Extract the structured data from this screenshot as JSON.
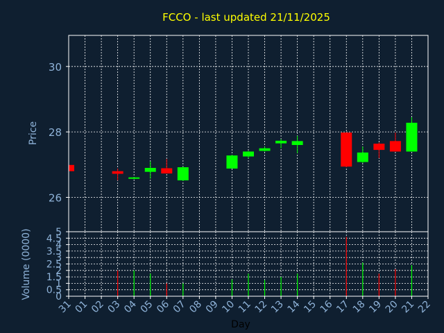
{
  "chart_data": [
    {
      "type": "candlestick",
      "title": "FCCO - last updated 21/11/2025",
      "ylabel": "Price",
      "ylim": [
        24.95,
        30.95
      ],
      "yticks": [
        26,
        28,
        30
      ],
      "ytick_labels": [
        "26",
        "28",
        "30"
      ],
      "grid": true,
      "colors": {
        "up": "#00ff00",
        "down": "#ff0000",
        "title": "#ffff00",
        "axis_text": "#8fb3d9",
        "grid": "#ffffff",
        "frame": "#ffffff",
        "background": "#0f1f30"
      },
      "x": [
        "31",
        "01",
        "02",
        "03",
        "04",
        "05",
        "06",
        "07",
        "08",
        "09",
        "10",
        "11",
        "12",
        "13",
        "14",
        "15",
        "16",
        "17",
        "18",
        "19",
        "20",
        "21",
        "22"
      ],
      "ohlc": [
        {
          "x": "31",
          "o": 26.99,
          "h": 27.0,
          "l": 26.78,
          "c": 26.8
        },
        {
          "x": "03",
          "o": 26.8,
          "h": 26.88,
          "l": 26.52,
          "c": 26.72
        },
        {
          "x": "04",
          "o": 26.57,
          "h": 26.62,
          "l": 26.55,
          "c": 26.61
        },
        {
          "x": "05",
          "o": 26.78,
          "h": 27.1,
          "l": 26.57,
          "c": 26.9
        },
        {
          "x": "06",
          "o": 26.89,
          "h": 27.17,
          "l": 26.73,
          "c": 26.73
        },
        {
          "x": "07",
          "o": 26.52,
          "h": 26.94,
          "l": 26.5,
          "c": 26.92
        },
        {
          "x": "10",
          "o": 26.88,
          "h": 27.3,
          "l": 26.88,
          "c": 27.28
        },
        {
          "x": "11",
          "o": 27.25,
          "h": 27.42,
          "l": 27.2,
          "c": 27.4
        },
        {
          "x": "12",
          "o": 27.42,
          "h": 27.55,
          "l": 27.4,
          "c": 27.5
        },
        {
          "x": "13",
          "o": 27.65,
          "h": 27.78,
          "l": 27.5,
          "c": 27.73
        },
        {
          "x": "14",
          "o": 27.6,
          "h": 27.88,
          "l": 27.35,
          "c": 27.72
        },
        {
          "x": "17",
          "o": 27.98,
          "h": 27.99,
          "l": 26.92,
          "c": 26.94
        },
        {
          "x": "18",
          "o": 27.08,
          "h": 27.55,
          "l": 27.05,
          "c": 27.37
        },
        {
          "x": "19",
          "o": 27.64,
          "h": 27.68,
          "l": 27.2,
          "c": 27.45
        },
        {
          "x": "20",
          "o": 27.72,
          "h": 27.98,
          "l": 27.4,
          "c": 27.4
        },
        {
          "x": "21",
          "o": 27.4,
          "h": 28.45,
          "l": 27.4,
          "c": 28.28
        }
      ]
    },
    {
      "type": "bar",
      "xlabel": "Day",
      "ylabel": "Volume (0000)",
      "ylim": [
        0,
        5
      ],
      "yticks": [
        0,
        0.5,
        1,
        1.5,
        2,
        2.5,
        3,
        3.5,
        4,
        4.5,
        5
      ],
      "ytick_labels": [
        "0",
        "0.5",
        "1",
        "1.5",
        "2",
        "2.5",
        "3",
        "3.5",
        "4",
        "4.5",
        "5"
      ],
      "categories": [
        "31",
        "01",
        "02",
        "03",
        "04",
        "05",
        "06",
        "07",
        "08",
        "09",
        "10",
        "11",
        "12",
        "13",
        "14",
        "15",
        "16",
        "17",
        "18",
        "19",
        "20",
        "21",
        "22"
      ],
      "values": [
        {
          "x": "03",
          "v": 2.0,
          "dir": "down"
        },
        {
          "x": "04",
          "v": 2.0,
          "dir": "up"
        },
        {
          "x": "05",
          "v": 1.75,
          "dir": "up"
        },
        {
          "x": "06",
          "v": 1.0,
          "dir": "down"
        },
        {
          "x": "07",
          "v": 1.0,
          "dir": "up"
        },
        {
          "x": "10",
          "v": 1.3,
          "dir": "up"
        },
        {
          "x": "11",
          "v": 1.75,
          "dir": "up"
        },
        {
          "x": "12",
          "v": 1.25,
          "dir": "up"
        },
        {
          "x": "13",
          "v": 1.5,
          "dir": "up"
        },
        {
          "x": "14",
          "v": 1.75,
          "dir": "up"
        },
        {
          "x": "17",
          "v": 4.6,
          "dir": "down"
        },
        {
          "x": "18",
          "v": 2.6,
          "dir": "up"
        },
        {
          "x": "19",
          "v": 1.75,
          "dir": "down"
        },
        {
          "x": "20",
          "v": 2.1,
          "dir": "down"
        },
        {
          "x": "21",
          "v": 2.4,
          "dir": "up"
        }
      ]
    }
  ]
}
